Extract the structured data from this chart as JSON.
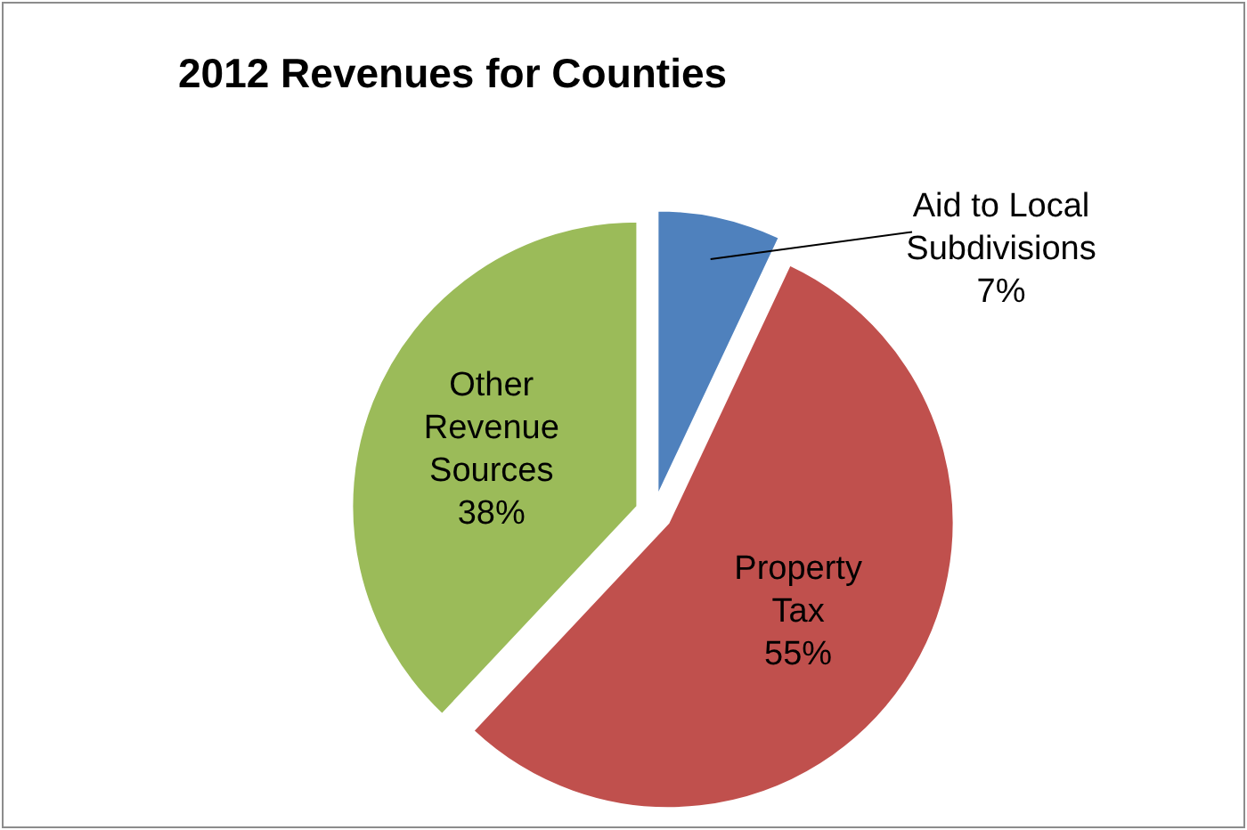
{
  "chart_data": {
    "type": "pie",
    "title": "2012 Revenues for Counties",
    "categories": [
      "Aid to Local Subdivisions",
      "Property Tax",
      "Other Revenue Sources"
    ],
    "values": [
      7,
      55,
      38
    ],
    "colors": [
      "#4f81bd",
      "#c0504d",
      "#9bbb59"
    ],
    "value_labels": [
      "7%",
      "55%",
      "38%"
    ],
    "legend": false
  }
}
